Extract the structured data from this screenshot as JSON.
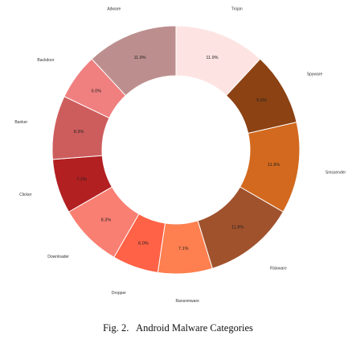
{
  "chart_data": {
    "type": "donut",
    "categories": [
      "Trojan",
      "Spyware",
      "Smssender",
      "Riskware",
      "Ransomware",
      "Dropper",
      "Downloader",
      "Clicker",
      "Banker",
      "Backdoor",
      "Adware"
    ],
    "values": [
      11.9,
      9.5,
      11.9,
      11.9,
      7.1,
      6.0,
      8.3,
      7.1,
      8.3,
      6.0,
      11.9
    ],
    "value_labels": [
      "11.9%",
      "9.5%",
      "11.9%",
      "11.9%",
      "7.1%",
      "6.0%",
      "8.3%",
      "7.1%",
      "8.3%",
      "6.0%",
      "11.9%"
    ],
    "colors": [
      "#fde4e3",
      "#8c4213",
      "#d2691e",
      "#a0522d",
      "#fe7f4f",
      "#ff6246",
      "#f97f72",
      "#b22022",
      "#cd5d5d",
      "#f08080",
      "#bc8f8e"
    ],
    "start_angle_deg": 90,
    "direction": "clockwise",
    "legend": "none"
  },
  "caption": "Fig. 2.   Android Malware Categories"
}
